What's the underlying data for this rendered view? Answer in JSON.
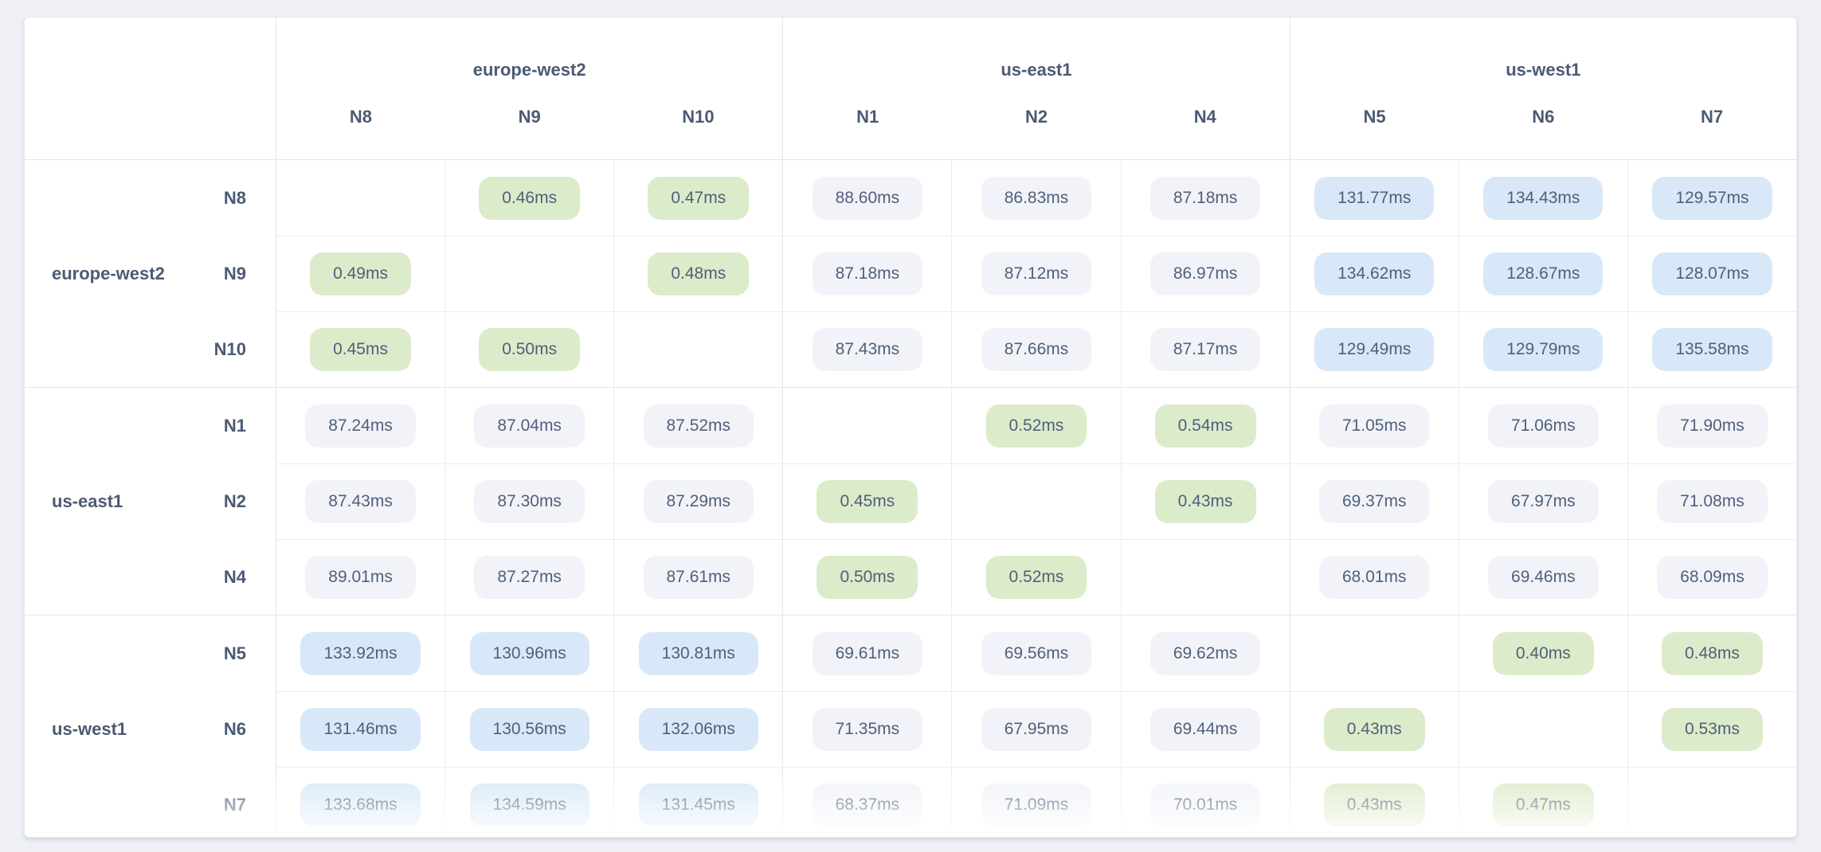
{
  "units": "ms",
  "regions": [
    {
      "name": "europe-west2",
      "nodes": [
        "N8",
        "N9",
        "N10"
      ]
    },
    {
      "name": "us-east1",
      "nodes": [
        "N1",
        "N2",
        "N4"
      ]
    },
    {
      "name": "us-west1",
      "nodes": [
        "N5",
        "N6",
        "N7"
      ]
    }
  ],
  "matrix": {
    "rows": [
      "N8",
      "N9",
      "N10",
      "N1",
      "N2",
      "N4",
      "N5",
      "N6",
      "N7"
    ],
    "cols": [
      "N8",
      "N9",
      "N10",
      "N1",
      "N2",
      "N4",
      "N5",
      "N6",
      "N7"
    ],
    "values_ms": [
      [
        null,
        0.46,
        0.47,
        88.6,
        86.83,
        87.18,
        131.77,
        134.43,
        129.57
      ],
      [
        0.49,
        null,
        0.48,
        87.18,
        87.12,
        86.97,
        134.62,
        128.67,
        128.07
      ],
      [
        0.45,
        0.5,
        null,
        87.43,
        87.66,
        87.17,
        129.49,
        129.79,
        135.58
      ],
      [
        87.24,
        87.04,
        87.52,
        null,
        0.52,
        0.54,
        71.05,
        71.06,
        71.9
      ],
      [
        87.43,
        87.3,
        87.29,
        0.45,
        null,
        0.43,
        69.37,
        67.97,
        71.08
      ],
      [
        89.01,
        87.27,
        87.61,
        0.5,
        0.52,
        null,
        68.01,
        69.46,
        68.09
      ],
      [
        133.92,
        130.96,
        130.81,
        69.61,
        69.56,
        69.62,
        null,
        0.4,
        0.48
      ],
      [
        131.46,
        130.56,
        132.06,
        71.35,
        67.95,
        69.44,
        0.43,
        null,
        0.53
      ],
      [
        133.68,
        134.59,
        131.45,
        68.37,
        71.09,
        70.01,
        0.43,
        0.47,
        null
      ]
    ]
  },
  "thresholds": {
    "low_max_ms": 1,
    "mid_max_ms": 100
  },
  "colors": {
    "page-bg": "#eef0f6",
    "card-border": "#e7eaf0",
    "group-border": "#e2e6ee",
    "cell-border": "#eaedf3",
    "label-color": "#4c5a73",
    "pill-text": "#50607a",
    "pill-low": "#dcebc9",
    "pill-mid": "#f1f3f8",
    "pill-high": "#d8e8f8"
  },
  "chart_data": {
    "type": "heatmap",
    "title": "",
    "x": [
      "N8",
      "N9",
      "N10",
      "N1",
      "N2",
      "N4",
      "N5",
      "N6",
      "N7"
    ],
    "y": [
      "N8",
      "N9",
      "N10",
      "N1",
      "N2",
      "N4",
      "N5",
      "N6",
      "N7"
    ],
    "x_groups": [
      {
        "label": "europe-west2",
        "members": [
          "N8",
          "N9",
          "N10"
        ]
      },
      {
        "label": "us-east1",
        "members": [
          "N1",
          "N2",
          "N4"
        ]
      },
      {
        "label": "us-west1",
        "members": [
          "N5",
          "N6",
          "N7"
        ]
      }
    ],
    "values": [
      [
        null,
        0.46,
        0.47,
        88.6,
        86.83,
        87.18,
        131.77,
        134.43,
        129.57
      ],
      [
        0.49,
        null,
        0.48,
        87.18,
        87.12,
        86.97,
        134.62,
        128.67,
        128.07
      ],
      [
        0.45,
        0.5,
        null,
        87.43,
        87.66,
        87.17,
        129.49,
        129.79,
        135.58
      ],
      [
        87.24,
        87.04,
        87.52,
        null,
        0.52,
        0.54,
        71.05,
        71.06,
        71.9
      ],
      [
        87.43,
        87.3,
        87.29,
        0.45,
        null,
        0.43,
        69.37,
        67.97,
        71.08
      ],
      [
        89.01,
        87.27,
        87.61,
        0.5,
        0.52,
        null,
        68.01,
        69.46,
        68.09
      ],
      [
        133.92,
        130.96,
        130.81,
        69.61,
        69.56,
        69.62,
        null,
        0.4,
        0.48
      ],
      [
        131.46,
        130.56,
        132.06,
        71.35,
        67.95,
        69.44,
        0.43,
        null,
        0.53
      ],
      [
        133.68,
        134.59,
        131.45,
        68.37,
        71.09,
        70.01,
        0.43,
        0.47,
        null
      ]
    ],
    "value_format": "0.00ms",
    "color_encoding": {
      "low(<1ms)": "#dcebc9",
      "mid(<100ms)": "#f1f3f8",
      "high(>=100ms)": "#d8e8f8"
    }
  }
}
